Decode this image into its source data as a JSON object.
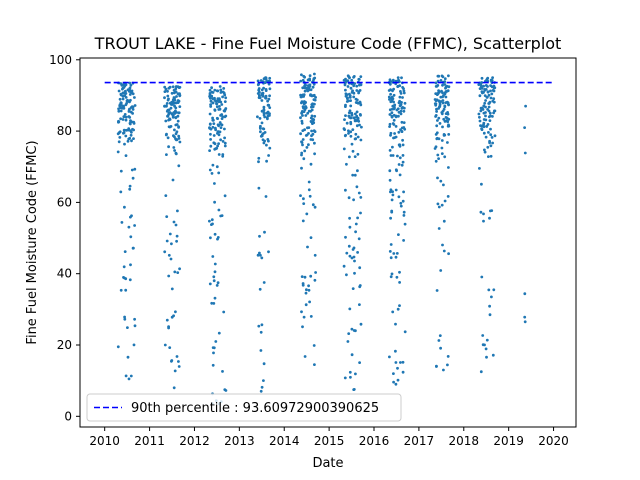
{
  "chart_data": {
    "type": "scatter",
    "title": "TROUT LAKE - Fine Fuel Moisture Code (FFMC), Scatterplot",
    "xlabel": "Date",
    "ylabel": "Fine Fuel Moisture Code (FFMC)",
    "xlim": [
      2009.45,
      2020.5
    ],
    "ylim": [
      -3,
      100.5
    ],
    "x_ticks": [
      2010,
      2011,
      2012,
      2013,
      2014,
      2015,
      2016,
      2017,
      2018,
      2019,
      2020
    ],
    "y_ticks": [
      0,
      20,
      40,
      60,
      80,
      100
    ],
    "point_color": "#1f77b4",
    "reference_line": {
      "label": "90th percentile : 93.60972900390625",
      "value": 93.60972900390625,
      "x_range": [
        2010,
        2020
      ],
      "color": "#0000ff",
      "style": "dashed"
    },
    "legend_position": "lower-left",
    "seasons": [
      {
        "year": 2010,
        "x_start": 2010.3,
        "x_end": 2010.68,
        "points": 150,
        "min": 10.5,
        "max": 93.5,
        "low_share": 0.25
      },
      {
        "year": 2011,
        "x_start": 2011.33,
        "x_end": 2011.68,
        "points": 140,
        "min": 8,
        "max": 92.5,
        "low_share": 0.25
      },
      {
        "year": 2012,
        "x_start": 2012.33,
        "x_end": 2012.7,
        "points": 150,
        "min": 3.5,
        "max": 92.5,
        "low_share": 0.3
      },
      {
        "year": 2013,
        "x_start": 2013.4,
        "x_end": 2013.68,
        "points": 105,
        "min": 7,
        "max": 95,
        "low_share": 0.2
      },
      {
        "year": 2014,
        "x_start": 2014.36,
        "x_end": 2014.7,
        "points": 155,
        "min": 14.5,
        "max": 96,
        "low_share": 0.22
      },
      {
        "year": 2015,
        "x_start": 2015.33,
        "x_end": 2015.72,
        "points": 160,
        "min": 7.5,
        "max": 95.5,
        "low_share": 0.25
      },
      {
        "year": 2016,
        "x_start": 2016.33,
        "x_end": 2016.7,
        "points": 160,
        "min": 9,
        "max": 95,
        "low_share": 0.25
      },
      {
        "year": 2017,
        "x_start": 2017.36,
        "x_end": 2017.68,
        "points": 130,
        "min": 13,
        "max": 95.5,
        "low_share": 0.18
      },
      {
        "year": 2018,
        "x_start": 2018.33,
        "x_end": 2018.7,
        "points": 130,
        "min": 12.5,
        "max": 95,
        "low_share": 0.22
      },
      {
        "year": 2019,
        "x_start": 2019.33,
        "x_end": 2019.38,
        "points": 6,
        "min": 26.5,
        "max": 87,
        "low_share": 0.3
      }
    ]
  }
}
